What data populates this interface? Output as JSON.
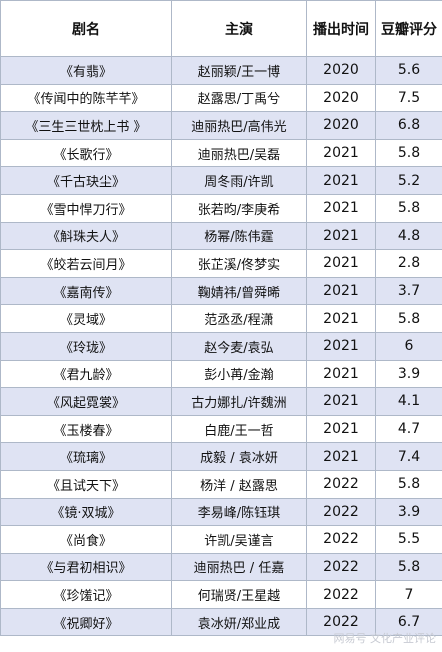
{
  "table": {
    "headers": [
      "剧名",
      "主演",
      "播出时间",
      "豆瓣评分"
    ],
    "rows": [
      [
        "《有翡》",
        "赵丽颖/王一博",
        "2020",
        "5.6"
      ],
      [
        "《传闻中的陈芊芊》",
        "赵露思/丁禹兮",
        "2020",
        "7.5"
      ],
      [
        "《三生三世枕上书 》",
        "迪丽热巴/高伟光",
        "2020",
        "6.8"
      ],
      [
        "《长歌行》",
        "迪丽热巴/吴磊",
        "2021",
        "5.8"
      ],
      [
        "《千古玦尘》",
        "周冬雨/许凯",
        "2021",
        "5.2"
      ],
      [
        "《雪中悍刀行》",
        "张若昀/李庚希",
        "2021",
        "5.8"
      ],
      [
        "《斛珠夫人》",
        "杨幂/陈伟霆",
        "2021",
        "4.8"
      ],
      [
        "《皎若云间月》",
        "张芷溪/佟梦实",
        "2021",
        "2.8"
      ],
      [
        "《嘉南传》",
        "鞠婧祎/曾舜晞",
        "2021",
        "3.7"
      ],
      [
        "《灵域》",
        "范丞丞/程潇",
        "2021",
        "5.8"
      ],
      [
        "《玲珑》",
        "赵今麦/袁弘",
        "2021",
        "6"
      ],
      [
        "《君九龄》",
        "彭小苒/金瀚",
        "2021",
        "3.9"
      ],
      [
        "《风起霓裳》",
        "古力娜扎/许魏洲",
        "2021",
        "4.1"
      ],
      [
        "《玉楼春》",
        "白鹿/王一哲",
        "2021",
        "4.7"
      ],
      [
        "《琉璃》",
        "成毅 / 袁冰妍",
        "2021",
        "7.4"
      ],
      [
        "《且试天下》",
        "杨洋 / 赵露思",
        "2022",
        "5.8"
      ],
      [
        "《镜·双城》",
        "李易峰/陈钰琪",
        "2022",
        "3.9"
      ],
      [
        "《尚食》",
        "许凯/吴谨言",
        "2022",
        "5.5"
      ],
      [
        "《与君初相识》",
        "迪丽热巴 / 任嘉",
        "2022",
        "5.8"
      ],
      [
        "《珍馐记》",
        "何瑞贤/王星越",
        "2022",
        "7"
      ],
      [
        "《祝卿好》",
        "袁冰妍/郑业成",
        "2022",
        "6.7"
      ]
    ]
  },
  "watermark": "网易号 文化产业评论"
}
